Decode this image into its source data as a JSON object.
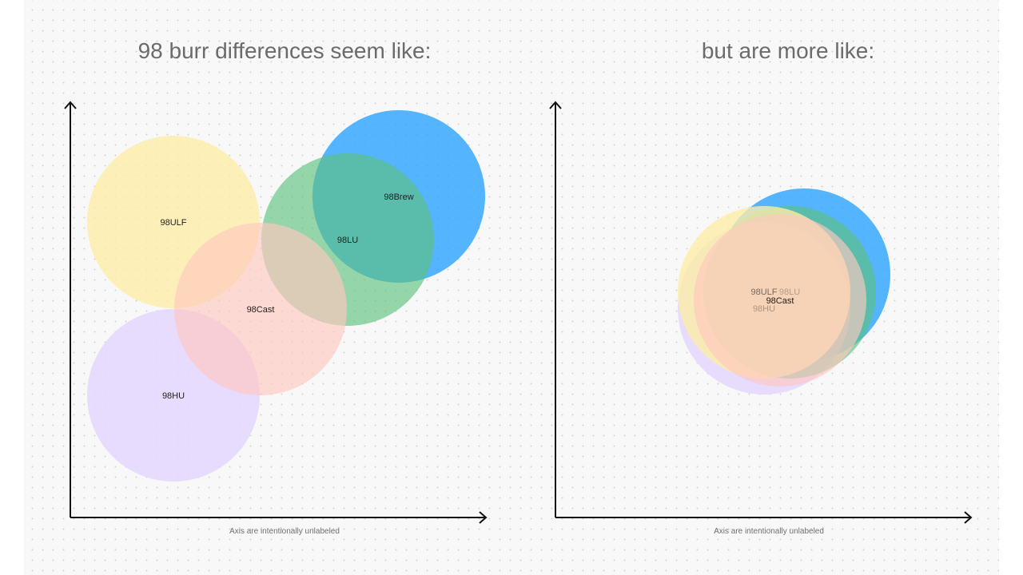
{
  "left_panel": {
    "title": "98 burr differences seem like:",
    "axis_caption": "Axis are intentionally unlabeled"
  },
  "right_panel": {
    "title": "but are more like:",
    "axis_caption": "Axis are intentionally unlabeled"
  },
  "bubbles": [
    {
      "id": "98ULF",
      "label": "98ULF",
      "color": "#fdeca6",
      "opacity": 0.8
    },
    {
      "id": "98HU",
      "label": "98HU",
      "color": "#e4d6ff",
      "opacity": 0.85
    },
    {
      "id": "98LU",
      "label": "98LU",
      "color": "#5dc27e",
      "opacity": 0.65
    },
    {
      "id": "98Brew",
      "label": "98Brew",
      "color": "#2aa2ff",
      "opacity": 0.8
    },
    {
      "id": "98Cast",
      "label": "98Cast",
      "color": "#ffc7bf",
      "opacity": 0.65
    }
  ]
}
